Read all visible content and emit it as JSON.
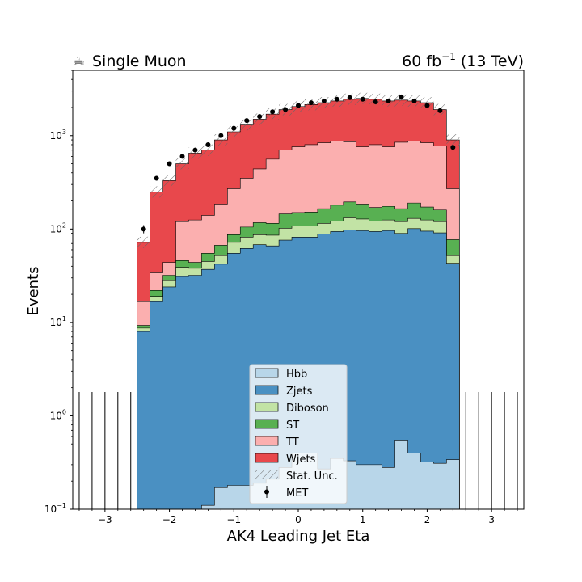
{
  "header": {
    "left_icon": "coffee-cup-icon",
    "left_glyph": "☕",
    "left_title": "Single Muon",
    "right_title_main": "60 fb",
    "right_title_sup": "−1",
    "right_title_end": " (13 TeV)"
  },
  "chart_data": {
    "type": "area",
    "title": "",
    "xlabel": "AK4 Leading Jet Eta",
    "ylabel": "Events",
    "xlim": [
      -3.5,
      3.5
    ],
    "ylim": [
      0.1,
      5000
    ],
    "yscale": "log",
    "x_ticks": [
      -3,
      -2,
      -1,
      0,
      1,
      2,
      3
    ],
    "x_tick_labels": [
      "−3",
      "−2",
      "−1",
      "0",
      "1",
      "2",
      "3"
    ],
    "y_ticks": [
      0.1,
      1,
      10,
      100,
      1000
    ],
    "y_tick_labels": [
      {
        "base": "10",
        "exp": "−1"
      },
      {
        "base": "10",
        "exp": "0"
      },
      {
        "base": "10",
        "exp": "1"
      },
      {
        "base": "10",
        "exp": "2"
      },
      {
        "base": "10",
        "exp": "3"
      }
    ],
    "grid": false,
    "legend_position": "lower-center",
    "bin_edges": [
      -2.5,
      -2.3,
      -2.1,
      -1.9,
      -1.7,
      -1.5,
      -1.3,
      -1.1,
      -0.9,
      -0.7,
      -0.5,
      -0.3,
      -0.1,
      0.1,
      0.3,
      0.5,
      0.7,
      0.9,
      1.1,
      1.3,
      1.5,
      1.7,
      1.9,
      2.1,
      2.3,
      2.5
    ],
    "stack_series": [
      {
        "name": "Hbb",
        "color": "#b8d6e9",
        "cumulative": [
          0.015,
          0.03,
          0.05,
          0.07,
          0.09,
          0.11,
          0.17,
          0.18,
          0.18,
          0.19,
          0.21,
          0.28,
          0.4,
          0.4,
          0.27,
          0.35,
          0.33,
          0.3,
          0.3,
          0.28,
          0.55,
          0.4,
          0.32,
          0.31,
          0.34
        ]
      },
      {
        "name": "Zjets",
        "color": "#4a90c2",
        "cumulative": [
          8,
          17,
          24,
          31,
          32,
          37,
          42,
          55,
          62,
          68,
          66,
          76,
          82,
          82,
          88,
          94,
          98,
          96,
          94,
          96,
          90,
          101,
          95,
          91,
          43
        ]
      },
      {
        "name": "Diboson",
        "color": "#c2e3a5",
        "cumulative": [
          8.7,
          19,
          28,
          39,
          38,
          45,
          52,
          72,
          82,
          87,
          86,
          102,
          108,
          108,
          115,
          122,
          132,
          128,
          122,
          125,
          120,
          130,
          125,
          120,
          52
        ]
      },
      {
        "name": "ST",
        "color": "#58b052",
        "cumulative": [
          9.3,
          22,
          32,
          46,
          44,
          55,
          67,
          87,
          105,
          117,
          115,
          145,
          150,
          152,
          165,
          180,
          195,
          185,
          170,
          175,
          165,
          190,
          172,
          160,
          77
        ]
      },
      {
        "name": "TT",
        "color": "#fbafaf",
        "cumulative": [
          17,
          34,
          44,
          120,
          125,
          140,
          185,
          270,
          350,
          440,
          560,
          700,
          760,
          800,
          840,
          870,
          860,
          760,
          800,
          760,
          850,
          870,
          840,
          780,
          270
        ]
      },
      {
        "name": "Wjets",
        "color": "#e8484c",
        "cumulative": [
          72,
          250,
          330,
          500,
          650,
          700,
          900,
          1100,
          1300,
          1500,
          1700,
          1900,
          2050,
          2150,
          2250,
          2350,
          2450,
          2500,
          2450,
          2350,
          2400,
          2350,
          2250,
          1900,
          900
        ]
      }
    ],
    "stat_unc_label": "Stat. Unc.",
    "data_series": {
      "name": "MET",
      "x": [
        -2.4,
        -2.2,
        -2.0,
        -1.8,
        -1.6,
        -1.4,
        -1.2,
        -1.0,
        -0.8,
        -0.6,
        -0.4,
        -0.2,
        0.0,
        0.2,
        0.4,
        0.6,
        0.8,
        1.0,
        1.2,
        1.4,
        1.6,
        1.8,
        2.0,
        2.2,
        2.4
      ],
      "y": [
        100,
        350,
        500,
        600,
        700,
        800,
        1000,
        1200,
        1450,
        1600,
        1800,
        1900,
        2100,
        2250,
        2350,
        2450,
        2550,
        2450,
        2300,
        2350,
        2600,
        2350,
        2100,
        1850,
        750
      ],
      "yerr": [
        10,
        19,
        22,
        24,
        26,
        28,
        32,
        35,
        38,
        40,
        42,
        44,
        46,
        47,
        48,
        49,
        50,
        49,
        48,
        48,
        51,
        48,
        46,
        43,
        27
      ]
    },
    "empty_bins_x": [
      -3.4,
      -3.2,
      -3.0,
      -2.8,
      -2.6,
      2.6,
      2.8,
      3.0,
      3.2,
      3.4
    ],
    "empty_bins_err_top": 1.8
  }
}
